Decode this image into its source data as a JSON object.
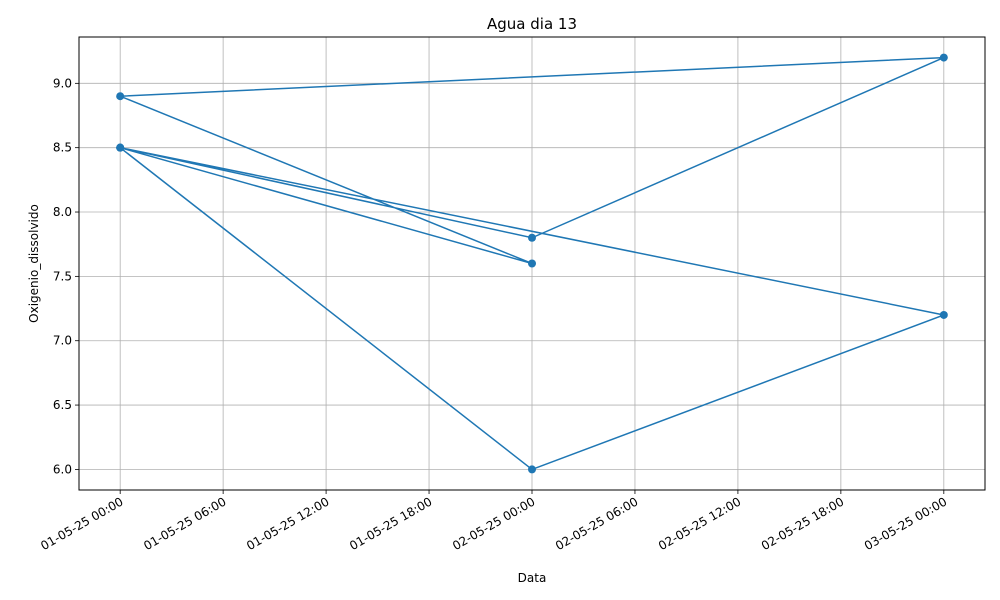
{
  "chart_data": {
    "type": "line",
    "title": "Agua dia 13",
    "xlabel": "Data",
    "ylabel": "Oxigenio_dissolvido",
    "x_tick_labels": [
      "01-05-25 00:00",
      "01-05-25 06:00",
      "01-05-25 12:00",
      "01-05-25 18:00",
      "02-05-25 00:00",
      "02-05-25 06:00",
      "02-05-25 12:00",
      "02-05-25 18:00",
      "03-05-25 00:00"
    ],
    "y_tick_labels": [
      "6.0",
      "6.5",
      "7.0",
      "7.5",
      "8.0",
      "8.5",
      "9.0"
    ],
    "y_ticks": [
      6.0,
      6.5,
      7.0,
      7.5,
      8.0,
      8.5,
      9.0
    ],
    "ylim": [
      5.84,
      9.36
    ],
    "xlim": [
      "2025-04-30T21:36",
      "2025-05-03T02:24"
    ],
    "grid": true,
    "marker": "circle",
    "color": "#1f77b4",
    "series": [
      {
        "x": [
          "2025-05-01T00:00",
          "2025-05-02T00:00",
          "2025-05-03T00:00",
          "2025-05-01T00:00",
          "2025-05-02T00:00",
          "2025-05-01T00:00",
          "2025-05-03T00:00",
          "2025-05-02T00:00",
          "2025-05-01T00:00"
        ],
        "values": [
          8.5,
          6.0,
          7.2,
          8.5,
          7.6,
          8.9,
          9.2,
          7.8,
          8.5
        ]
      }
    ]
  }
}
